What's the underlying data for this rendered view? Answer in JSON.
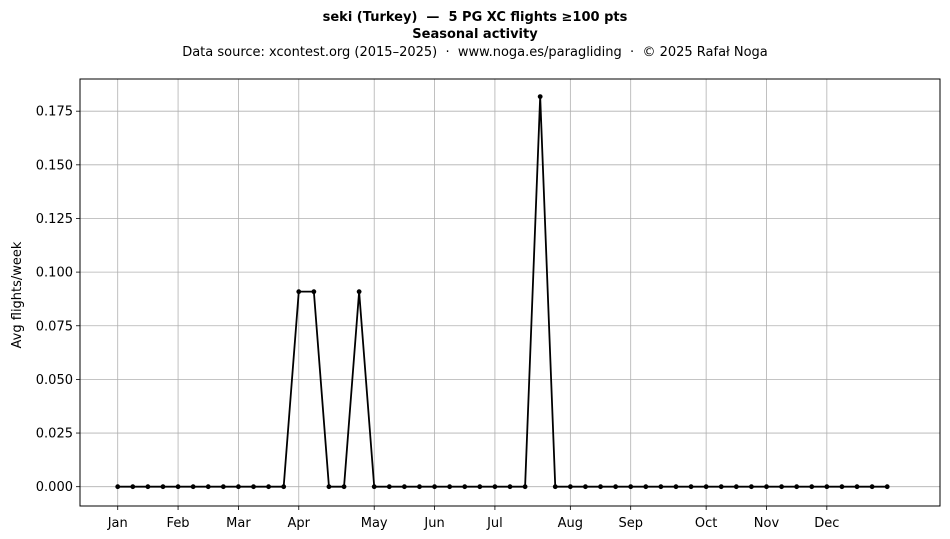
{
  "chart_data": {
    "type": "line",
    "title_line1": "seki (Turkey)  —  5 PG XC flights ≥100 pts",
    "title_line2": "Seasonal activity",
    "subtitle": "Data source: xcontest.org (2015–2025)  ·  www.noga.es/paragliding  ·  © 2025 Rafał Noga",
    "xlabel": "",
    "ylabel": "Avg flights/week",
    "xlim": [
      -2.5,
      54.5
    ],
    "ylim": [
      -0.009,
      0.19
    ],
    "yticks": [
      0.0,
      0.025,
      0.05,
      0.075,
      0.1,
      0.125,
      0.15,
      0.175
    ],
    "ytick_labels": [
      "0.000",
      "0.025",
      "0.050",
      "0.075",
      "0.100",
      "0.125",
      "0.150",
      "0.175"
    ],
    "xticks": [
      0,
      4,
      8,
      12,
      17,
      21,
      25,
      30,
      34,
      39,
      43,
      47
    ],
    "xtick_labels": [
      "Jan",
      "Feb",
      "Mar",
      "Apr",
      "May",
      "Jun",
      "Jul",
      "Aug",
      "Sep",
      "Oct",
      "Nov",
      "Dec"
    ],
    "grid": true,
    "line_color": "#000000",
    "series": [
      {
        "x": [
          0,
          1,
          2,
          3,
          4,
          5,
          6,
          7,
          8,
          9,
          10,
          11,
          12,
          13,
          14,
          15,
          16,
          17,
          18,
          19,
          20,
          21,
          22,
          23,
          24,
          25,
          26,
          27,
          28,
          29,
          30,
          31,
          32,
          33,
          34,
          35,
          36,
          37,
          38,
          39,
          40,
          41,
          42,
          43,
          44,
          45,
          46,
          47,
          48,
          49,
          50,
          51
        ],
        "values": [
          0,
          0,
          0,
          0,
          0,
          0,
          0,
          0,
          0,
          0,
          0,
          0,
          0.0909,
          0.0909,
          0,
          0,
          0.0909,
          0,
          0,
          0,
          0,
          0,
          0,
          0,
          0,
          0,
          0,
          0,
          0.1818,
          0,
          0,
          0,
          0,
          0,
          0,
          0,
          0,
          0,
          0,
          0,
          0,
          0,
          0,
          0,
          0,
          0,
          0,
          0,
          0,
          0,
          0,
          0
        ]
      }
    ]
  }
}
